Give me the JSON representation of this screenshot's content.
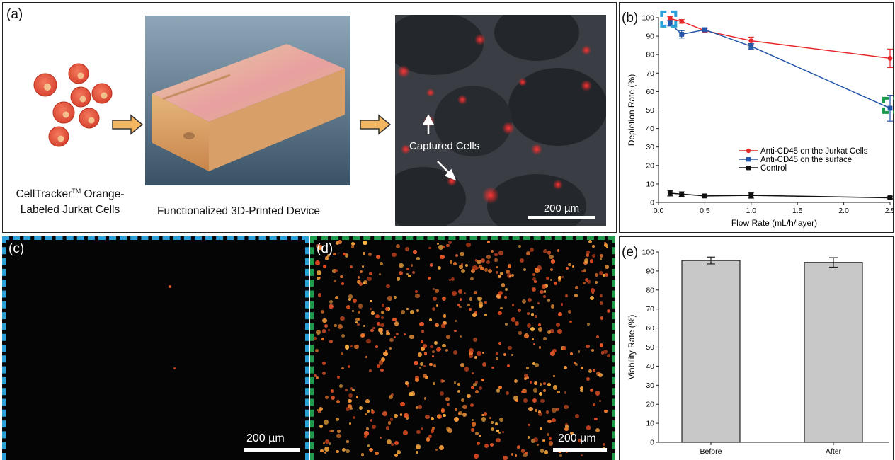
{
  "panel_a": {
    "label": "(a)",
    "cells_caption_line1_pre": "CellTracker",
    "cells_caption_tm": "TM",
    "cells_caption_line1_post": " Orange-",
    "cells_caption_line2": "Labeled Jurkat Cells",
    "device_caption": "Functionalized 3D-Printed Device",
    "captured_label": "Captured Cells",
    "scalebar": "200 µm"
  },
  "panel_c": {
    "label": "(c)",
    "scalebar": "200 µm"
  },
  "panel_d": {
    "label": "(d)",
    "scalebar": "200 µm"
  },
  "colors": {
    "red_series": "#e8292b",
    "blue_series": "#2456a8",
    "black_series": "#111111",
    "bar_fill": "#c8c8c8",
    "dash_blue": "#2a9fd8",
    "dash_green": "#1f9a4a",
    "arrow_fill": "#f5b661",
    "cell_color": "#e2513c"
  },
  "icons": [
    "cell-icon",
    "right-arrow-icon",
    "white-arrow-icon"
  ],
  "chart_data": [
    {
      "panel": "(b)",
      "type": "line",
      "xlabel": "Flow Rate (mL/h/layer)",
      "ylabel": "Depletion Rate (%)",
      "xlim": [
        0,
        2.5
      ],
      "ylim": [
        0,
        100
      ],
      "xticks": [
        "0.0",
        "0.5",
        "1.0",
        "1.5",
        "2.0",
        "2.5"
      ],
      "yticks": [
        "0",
        "10",
        "20",
        "30",
        "40",
        "50",
        "60",
        "70",
        "80",
        "90",
        "100"
      ],
      "legend_position": "center-right",
      "series": [
        {
          "name": "Anti-CD45 on the Jurkat Cells",
          "color": "#e8292b",
          "marker": "circle",
          "x": [
            0.125,
            0.25,
            0.5,
            1.0,
            2.5
          ],
          "y": [
            99.5,
            98,
            93,
            87.5,
            78
          ],
          "err": [
            1,
            1,
            1,
            2,
            5
          ]
        },
        {
          "name": "Anti-CD45 on the surface",
          "color": "#2456a8",
          "marker": "square",
          "x": [
            0.125,
            0.25,
            0.5,
            1.0,
            2.5
          ],
          "y": [
            97,
            91,
            93.5,
            84.5,
            51
          ],
          "err": [
            1.5,
            2,
            1,
            1.5,
            7
          ]
        },
        {
          "name": "Control",
          "color": "#111111",
          "marker": "square",
          "x": [
            0.125,
            0.25,
            0.5,
            1.0,
            2.5
          ],
          "y": [
            5,
            4.5,
            3.5,
            3.8,
            2.5
          ],
          "err": [
            1.5,
            1.2,
            0.6,
            1.5,
            0.6
          ]
        }
      ]
    },
    {
      "panel": "(e)",
      "type": "bar",
      "ylabel": "Viability Rate (%)",
      "ylim": [
        0,
        100
      ],
      "yticks": [
        "0",
        "10",
        "20",
        "30",
        "40",
        "50",
        "60",
        "70",
        "80",
        "90",
        "100"
      ],
      "categories": [
        "Before",
        "After"
      ],
      "values": [
        95.5,
        94.5
      ],
      "err": [
        1.8,
        2.5
      ]
    }
  ]
}
